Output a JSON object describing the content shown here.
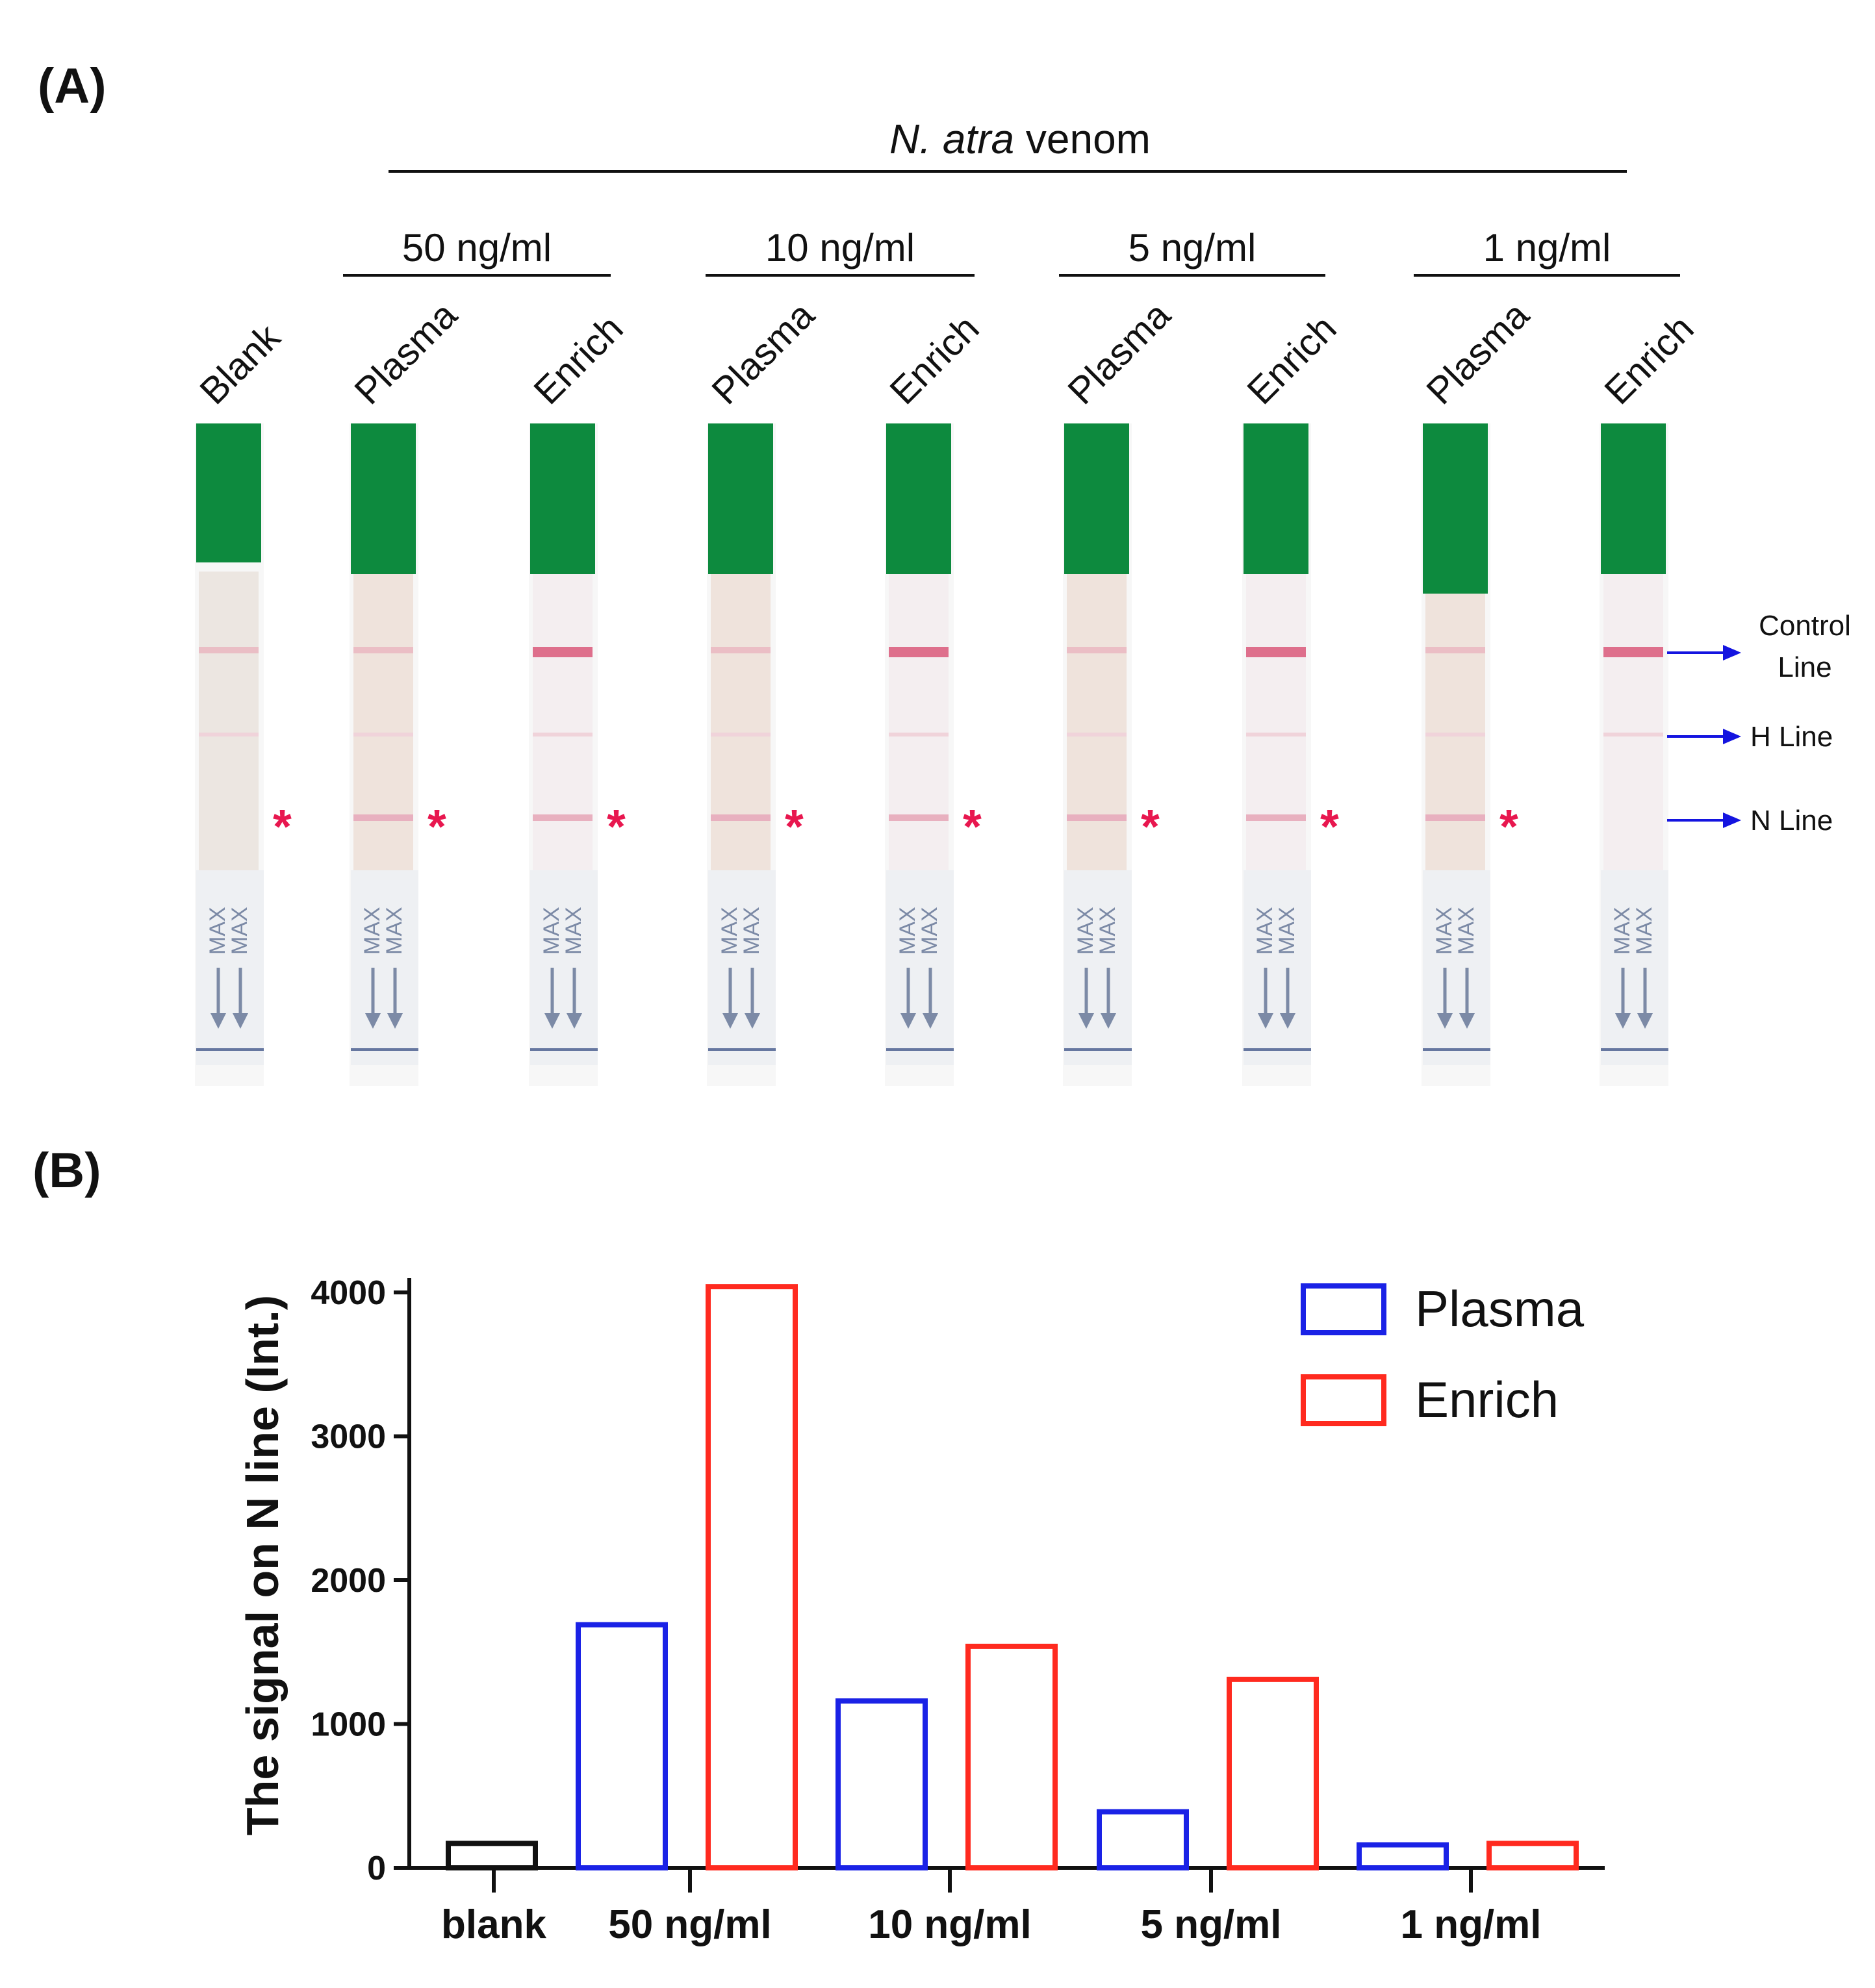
{
  "panel_a": {
    "label": "(A)",
    "venom_italic": "N. atra",
    "venom_rest": " venom",
    "concentrations": [
      "50 ng/ml",
      "10 ng/ml",
      "5 ng/ml",
      "1 ng/ml"
    ],
    "strips": [
      {
        "label": "Blank",
        "n_line_visible": false
      },
      {
        "label": "Plasma",
        "n_line_visible": true
      },
      {
        "label": "Enrich",
        "n_line_visible": true
      },
      {
        "label": "Plasma",
        "n_line_visible": true
      },
      {
        "label": "Enrich",
        "n_line_visible": true
      },
      {
        "label": "Plasma",
        "n_line_visible": true
      },
      {
        "label": "Enrich",
        "n_line_visible": true
      },
      {
        "label": "Plasma",
        "n_line_visible": true
      },
      {
        "label": "Enrich",
        "n_line_visible": false
      }
    ],
    "asterisk": "*",
    "max_text": "MAX",
    "line_labels": {
      "control_1": "Control",
      "control_2": "Line",
      "h": "H Line",
      "n": "N Line"
    }
  },
  "chart_data": {
    "panel_label": "(B)",
    "type": "bar",
    "categories": [
      "blank",
      "50 ng/ml",
      "10 ng/ml",
      "5 ng/ml",
      "1 ng/ml"
    ],
    "bars": [
      {
        "category": "blank",
        "series": "Blank",
        "value": 170
      },
      {
        "category": "50 ng/ml",
        "series": "Plasma",
        "value": 1690
      },
      {
        "category": "50 ng/ml",
        "series": "Enrich",
        "value": 4040
      },
      {
        "category": "10 ng/ml",
        "series": "Plasma",
        "value": 1160
      },
      {
        "category": "10 ng/ml",
        "series": "Enrich",
        "value": 1540
      },
      {
        "category": "5 ng/ml",
        "series": "Plasma",
        "value": 390
      },
      {
        "category": "5 ng/ml",
        "series": "Enrich",
        "value": 1310
      },
      {
        "category": "1 ng/ml",
        "series": "Plasma",
        "value": 160
      },
      {
        "category": "1 ng/ml",
        "series": "Enrich",
        "value": 170
      }
    ],
    "series_colors": {
      "Blank": "#111111",
      "Plasma": "#1a22e6",
      "Enrich": "#ff2a1f"
    },
    "legend": [
      {
        "name": "Plasma",
        "color": "#1a22e6"
      },
      {
        "name": "Enrich",
        "color": "#ff2a1f"
      }
    ],
    "legend_position": "top-right",
    "ylabel": "The signal on N line (Int.)",
    "ylim": [
      0,
      4000
    ],
    "yticks": [
      "0",
      "1000",
      "2000",
      "3000",
      "4000"
    ]
  }
}
